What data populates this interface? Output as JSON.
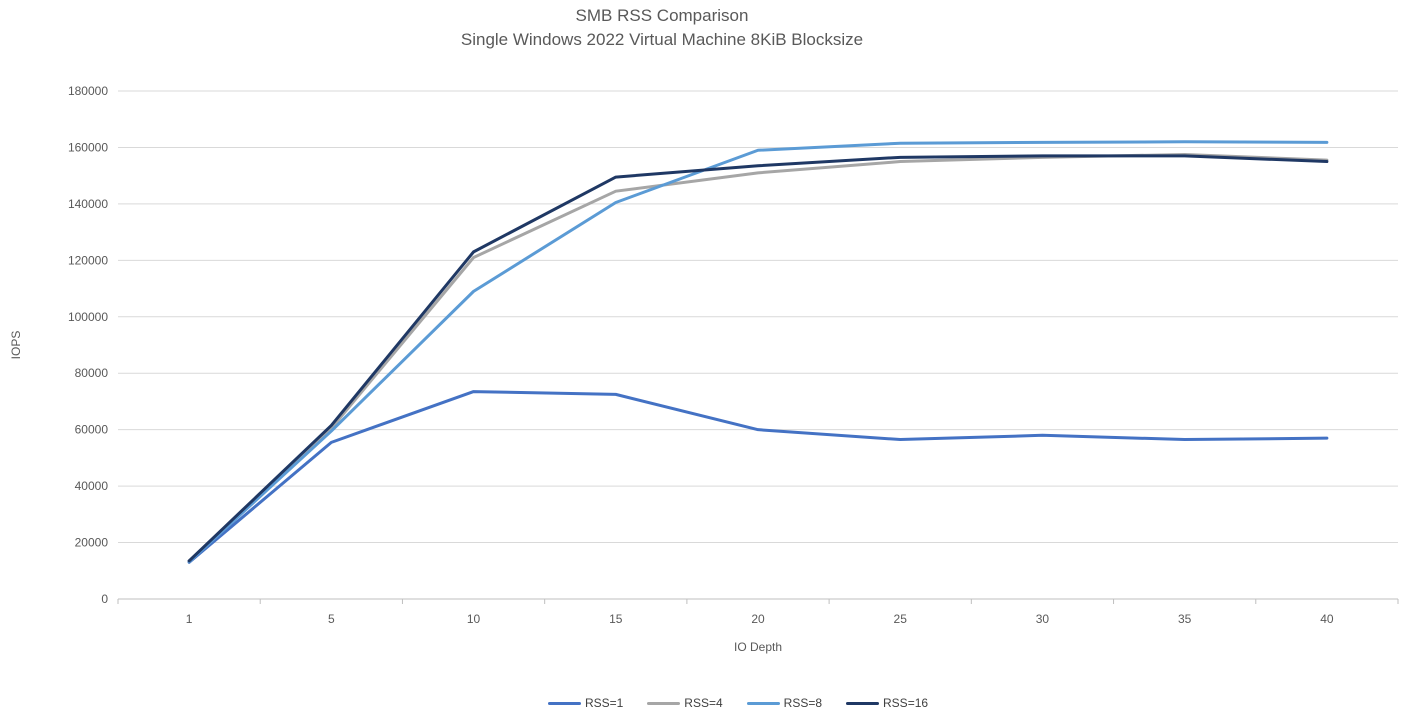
{
  "chart": {
    "title_line1": "SMB RSS Comparison",
    "title_line2": "Single Windows 2022 Virtual Machine 8KiB Blocksize",
    "y_axis_title": "IOPS",
    "x_axis_title": "IO Depth"
  },
  "chart_data": {
    "type": "line",
    "title": "SMB RSS Comparison",
    "subtitle": "Single Windows 2022 Virtual Machine 8KiB Blocksize",
    "xlabel": "IO Depth",
    "ylabel": "IOPS",
    "categories": [
      1,
      5,
      10,
      15,
      20,
      25,
      30,
      35,
      40
    ],
    "ylim": [
      0,
      180000
    ],
    "y_tick_step": 20000,
    "grid": true,
    "legend_position": "bottom",
    "series": [
      {
        "name": "RSS=1",
        "color": "#4472C4",
        "values": [
          13000,
          55500,
          73500,
          72500,
          60000,
          56500,
          58000,
          56500,
          57000
        ]
      },
      {
        "name": "RSS=4",
        "color": "#A6A6A6",
        "values": [
          13500,
          60500,
          121000,
          144500,
          151000,
          155000,
          156500,
          157500,
          155500
        ]
      },
      {
        "name": "RSS=8",
        "color": "#5B9BD5",
        "values": [
          13200,
          59500,
          109000,
          140500,
          159000,
          161500,
          161800,
          162000,
          161800
        ]
      },
      {
        "name": "RSS=16",
        "color": "#1F3864",
        "values": [
          13500,
          61500,
          123000,
          149500,
          153500,
          156500,
          157000,
          157000,
          155000
        ]
      }
    ]
  },
  "style_colors": {
    "gridline": "#D9D9D9",
    "axis_line": "#BFBFBF",
    "tick_text": "#595959",
    "title_text": "#595959",
    "legend_text": "#404040"
  }
}
